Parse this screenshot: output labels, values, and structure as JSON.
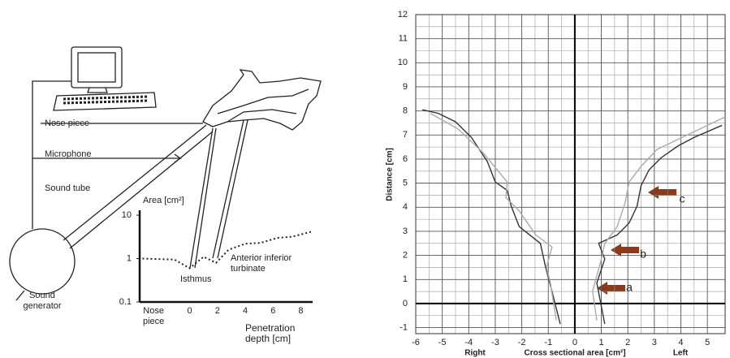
{
  "diagram": {
    "labels": [
      "Nose piece",
      "Microphone",
      "Sound tube",
      "Sound generator",
      "Isthmus",
      "Anterior inferior turbinate"
    ]
  },
  "chart_data": [
    {
      "type": "line",
      "y_label": "Area [cm²]",
      "x_label": "Penetration depth [cm]",
      "yscale": "log",
      "xlim": [
        -3.6,
        9.2
      ],
      "ylim": [
        0.1,
        13
      ],
      "xticks": [
        {
          "value": -2.6,
          "label": "Nose piece"
        },
        0,
        2,
        4,
        6,
        8
      ],
      "yticks": [
        0.1,
        1,
        10
      ],
      "grid": false,
      "series": [
        {
          "color": "#222",
          "line_style": "dotted",
          "x": [
            -3.4,
            -1.1,
            0,
            1,
            1.9,
            2.8,
            4,
            5.1,
            6.3,
            7.4,
            8.8
          ],
          "values": [
            1.0,
            0.95,
            0.6,
            1.1,
            0.8,
            1.6,
            2.2,
            2.3,
            3,
            3.2,
            4.2
          ]
        }
      ]
    },
    {
      "type": "line",
      "y_label": "Distance [cm]",
      "x_label": "Cross sectional area [cm²]",
      "annotations": [
        "Right",
        "Left",
        "a",
        "b",
        "c"
      ],
      "xlim": [
        -6,
        5.67
      ],
      "ylim": [
        -1.25,
        12
      ],
      "xticks": [
        -6,
        -5,
        -4,
        -3,
        -2,
        -1,
        0,
        1,
        2,
        3,
        4,
        5
      ],
      "yticks": [
        -1,
        0,
        1,
        2,
        3,
        4,
        5,
        6,
        7,
        8,
        9,
        10,
        11,
        12
      ],
      "grid": true,
      "series": [
        {
          "color": "#333",
          "x": [
            1.13,
            0.98,
            0.83,
            1.13,
            0.9,
            1.6,
            2.05,
            2.35,
            2.5,
            2.8,
            3.25,
            3.9,
            4.5,
            5.55
          ],
          "values": [
            -0.85,
            0,
            0.85,
            1.85,
            2.5,
            2.85,
            3.35,
            4.05,
            4.9,
            5.55,
            6.05,
            6.55,
            6.9,
            7.4
          ]
        },
        {
          "color": "#aaa",
          "x": [
            0.83,
            0.67,
            1.0,
            1.13,
            1.6,
            1.9,
            2.05,
            2.5,
            3.1,
            4.05,
            5.67
          ],
          "values": [
            -0.7,
            0.5,
            1.85,
            2.5,
            3.2,
            4.2,
            5.05,
            5.7,
            6.4,
            6.9,
            7.75
          ]
        },
        {
          "color": "#333",
          "x": [
            -0.55,
            -0.86,
            -1.1,
            -1.3,
            -2.1,
            -2.4,
            -2.55,
            -3.0,
            -3.3,
            -3.9,
            -4.5,
            -5.15,
            -5.75
          ],
          "values": [
            -0.85,
            0.5,
            1.5,
            2.5,
            3.2,
            4.05,
            4.7,
            5.05,
            5.9,
            6.9,
            7.55,
            7.9,
            8.05
          ]
        },
        {
          "color": "#aaa",
          "x": [
            -0.7,
            -0.92,
            -1.07,
            -0.86,
            -1.47,
            -2.1,
            -2.6,
            -2.55,
            -3.45,
            -4.4,
            -5.45
          ],
          "values": [
            -0.7,
            0.85,
            1.5,
            2.35,
            2.85,
            3.85,
            4.4,
            5.05,
            6.25,
            7.25,
            7.9
          ]
        }
      ]
    }
  ]
}
